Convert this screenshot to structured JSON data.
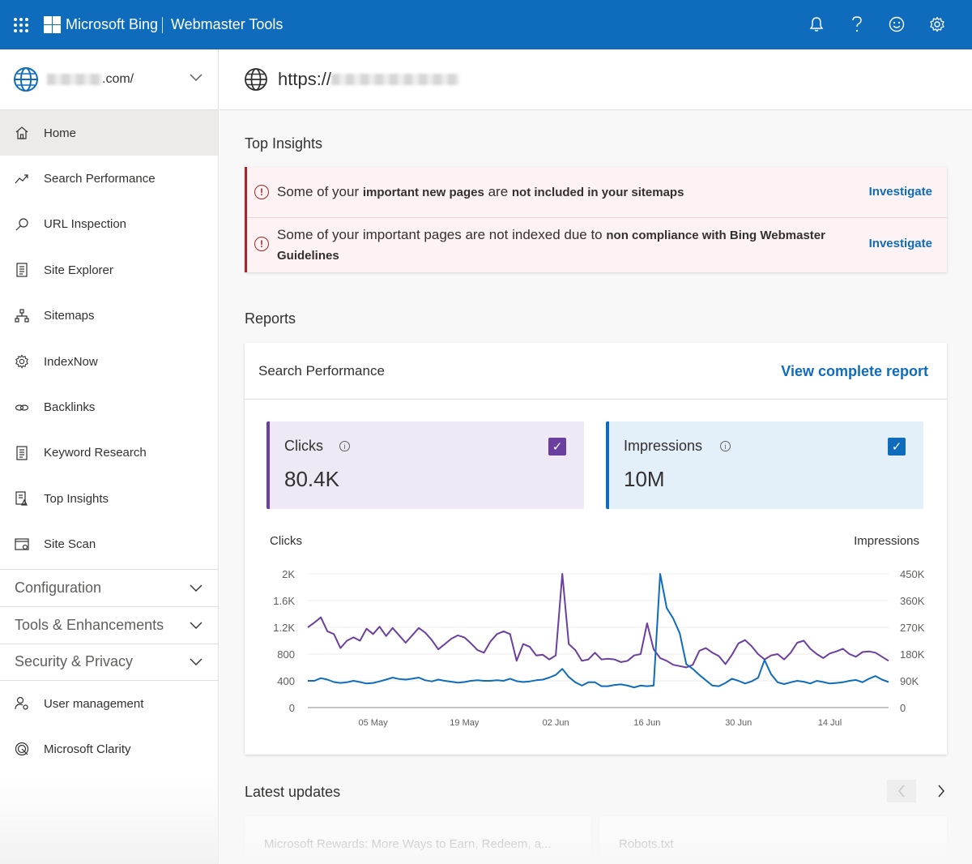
{
  "topbar": {
    "brand": "Microsoft Bing",
    "product": "Webmaster Tools",
    "icons": [
      "bell-icon",
      "help-icon",
      "smiley-icon",
      "gear-icon"
    ]
  },
  "site_picker": {
    "suffix": ".com/"
  },
  "url_bar": {
    "prefix": "https://"
  },
  "sidebar": {
    "items": [
      {
        "label": "Home",
        "icon": "home-icon",
        "active": true
      },
      {
        "label": "Search Performance",
        "icon": "trend-icon"
      },
      {
        "label": "URL Inspection",
        "icon": "search-icon"
      },
      {
        "label": "Site Explorer",
        "icon": "document-icon"
      },
      {
        "label": "Sitemaps",
        "icon": "sitemap-icon"
      },
      {
        "label": "IndexNow",
        "icon": "gear-icon"
      },
      {
        "label": "Backlinks",
        "icon": "link-icon"
      },
      {
        "label": "Keyword Research",
        "icon": "document-icon"
      },
      {
        "label": "Top Insights",
        "icon": "insights-icon"
      },
      {
        "label": "Site Scan",
        "icon": "scan-icon"
      }
    ],
    "groups": [
      {
        "label": "Configuration"
      },
      {
        "label": "Tools & Enhancements"
      },
      {
        "label": "Security & Privacy"
      }
    ],
    "bottom_items": [
      {
        "label": "User management",
        "icon": "user-gear-icon"
      },
      {
        "label": "Microsoft Clarity",
        "icon": "clarity-icon"
      }
    ]
  },
  "top_insights": {
    "title": "Top Insights",
    "items": [
      {
        "text_plain": "Some of your ",
        "text_bold": "important new pages",
        "text_plain2": " are ",
        "text_bold2": "not included in your sitemaps",
        "action": "Investigate"
      },
      {
        "text_plain": "Some of your important pages are not indexed due to ",
        "text_bold": "non compliance with Bing Webmaster Guidelines",
        "action": "Investigate"
      }
    ]
  },
  "reports": {
    "title": "Reports",
    "card_title": "Search Performance",
    "view_link": "View complete report",
    "metrics": [
      {
        "label": "Clicks",
        "value": "80.4K",
        "checked": true,
        "color": "#6b3fa0",
        "bg": "#efe9f5"
      },
      {
        "label": "Impressions",
        "value": "10M",
        "checked": true,
        "color": "#0f6cbd",
        "bg": "#e3f0fa"
      }
    ]
  },
  "chart_data": {
    "type": "line",
    "left_axis_label": "Clicks",
    "right_axis_label": "Impressions",
    "y_left_ticks": [
      "0",
      "400",
      "800",
      "1.2K",
      "1.6K",
      "2K"
    ],
    "y_right_ticks": [
      "0",
      "90K",
      "180K",
      "270K",
      "360K",
      "450K"
    ],
    "y_left_range": [
      0,
      2000
    ],
    "y_right_range": [
      0,
      450000
    ],
    "x_tick_labels": [
      "05 May",
      "19 May",
      "02 Jun",
      "16 Jun",
      "30 Jun",
      "14 Jul"
    ],
    "x_tick_index": [
      10,
      24,
      38,
      52,
      66,
      80
    ],
    "series": [
      {
        "name": "Clicks",
        "color": "#6b3fa0",
        "axis": "left",
        "values": [
          1200,
          1270,
          1350,
          1140,
          1100,
          890,
          1000,
          1050,
          1000,
          1180,
          1100,
          1210,
          1070,
          1190,
          1080,
          970,
          1080,
          1190,
          1120,
          1010,
          870,
          950,
          1030,
          1080,
          1050,
          960,
          860,
          820,
          990,
          1100,
          1140,
          1100,
          700,
          950,
          910,
          780,
          790,
          720,
          780,
          2000,
          950,
          860,
          700,
          720,
          820,
          720,
          730,
          720,
          680,
          700,
          780,
          800,
          1260,
          870,
          740,
          700,
          640,
          620,
          600,
          640,
          850,
          890,
          820,
          770,
          650,
          790,
          960,
          1010,
          920,
          800,
          720,
          780,
          800,
          720,
          820,
          970,
          1000,
          880,
          800,
          740,
          810,
          840,
          880,
          800,
          760,
          830,
          840,
          820,
          760,
          700
        ]
      },
      {
        "name": "Impressions",
        "color": "#0f6cbd",
        "axis": "right",
        "values": [
          90000,
          90000,
          99000,
          94000,
          86000,
          83000,
          85000,
          90000,
          86000,
          81000,
          83000,
          88000,
          94000,
          101000,
          96000,
          94000,
          97000,
          101000,
          92000,
          88000,
          94000,
          90000,
          87000,
          84000,
          86000,
          90000,
          92000,
          90000,
          90000,
          92000,
          90000,
          97000,
          89000,
          86000,
          88000,
          92000,
          94000,
          101000,
          110000,
          130000,
          103000,
          85000,
          74000,
          85000,
          85000,
          72000,
          72000,
          76000,
          78000,
          74000,
          68000,
          74000,
          72000,
          74000,
          450000,
          335000,
          300000,
          250000,
          146000,
          130000,
          110000,
          92000,
          74000,
          72000,
          83000,
          97000,
          90000,
          81000,
          88000,
          100000,
          160000,
          112000,
          85000,
          79000,
          85000,
          90000,
          87000,
          81000,
          90000,
          86000,
          81000,
          83000,
          85000,
          90000,
          93000,
          85000,
          97000,
          106000,
          94000,
          86000
        ]
      }
    ]
  },
  "latest_updates": {
    "title": "Latest updates",
    "cards": [
      {
        "title": "Microsoft Rewards: More Ways to Earn, Redeem, a..."
      },
      {
        "title": "Robots.txt"
      }
    ]
  }
}
